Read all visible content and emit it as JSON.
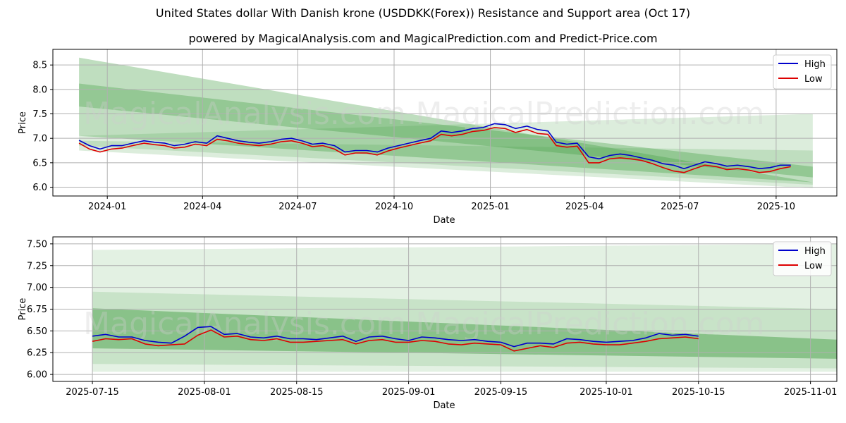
{
  "title": "United States dollar With Danish krone (USDDKK(Forex)) Resistance and Support area (Oct 17)",
  "subtitle": "powered by MagicalAnalysis.com and MagicalPrediction.com and Predict-Price.com",
  "watermarks": [
    "MagicalAnalysis.com",
    "MagicalPrediction.com"
  ],
  "colors": {
    "high": "#0000cc",
    "low": "#dd0000",
    "band": "#3c9a3c",
    "grid": "#b0b0b0"
  },
  "chart_data": [
    {
      "type": "line",
      "xlabel": "Date",
      "ylabel": "Price",
      "ylim": [
        5.82,
        8.82
      ],
      "xlim": [
        "2023-11-10",
        "2025-11-28"
      ],
      "yticks": [
        "6.0",
        "6.5",
        "7.0",
        "7.5",
        "8.0",
        "8.5"
      ],
      "xticks": [
        {
          "date": "2024-01-01",
          "label": "2024-01"
        },
        {
          "date": "2024-04-01",
          "label": "2024-04"
        },
        {
          "date": "2024-07-01",
          "label": "2024-07"
        },
        {
          "date": "2024-10-01",
          "label": "2024-10"
        },
        {
          "date": "2025-01-01",
          "label": "2025-01"
        },
        {
          "date": "2025-04-01",
          "label": "2025-04"
        },
        {
          "date": "2025-07-01",
          "label": "2025-07"
        },
        {
          "date": "2025-10-01",
          "label": "2025-10"
        }
      ],
      "grid": true,
      "legend": "top-right",
      "bands": [
        {
          "x": [
            "2023-12-05",
            "2025-11-05"
          ],
          "upper": [
            8.65,
            6.1
          ],
          "lower": [
            7.05,
            6.1
          ],
          "opacity": 0.33
        },
        {
          "x": [
            "2023-12-05",
            "2025-11-05"
          ],
          "upper": [
            8.12,
            6.42
          ],
          "lower": [
            7.65,
            6.2
          ],
          "opacity": 0.33
        },
        {
          "x": [
            "2023-12-05",
            "2025-11-05"
          ],
          "upper": [
            7.05,
            7.5
          ],
          "lower": [
            6.75,
            5.98
          ],
          "opacity": 0.18
        },
        {
          "x": [
            "2023-12-05",
            "2025-11-05"
          ],
          "upper": [
            6.95,
            6.75
          ],
          "lower": [
            6.85,
            6.05
          ],
          "opacity": 0.18
        }
      ],
      "series": [
        {
          "name": "High",
          "x": [
            "2023-12-05",
            "2023-12-15",
            "2023-12-25",
            "2024-01-05",
            "2024-01-15",
            "2024-01-25",
            "2024-02-05",
            "2024-02-15",
            "2024-02-25",
            "2024-03-05",
            "2024-03-15",
            "2024-03-25",
            "2024-04-05",
            "2024-04-15",
            "2024-04-25",
            "2024-05-05",
            "2024-05-15",
            "2024-05-25",
            "2024-06-05",
            "2024-06-15",
            "2024-06-25",
            "2024-07-05",
            "2024-07-15",
            "2024-07-25",
            "2024-08-05",
            "2024-08-15",
            "2024-08-25",
            "2024-09-05",
            "2024-09-15",
            "2024-09-25",
            "2024-10-05",
            "2024-10-15",
            "2024-10-25",
            "2024-11-05",
            "2024-11-15",
            "2024-11-25",
            "2024-12-05",
            "2024-12-15",
            "2024-12-25",
            "2025-01-05",
            "2025-01-15",
            "2025-01-25",
            "2025-02-05",
            "2025-02-15",
            "2025-02-25",
            "2025-03-05",
            "2025-03-15",
            "2025-03-25",
            "2025-04-05",
            "2025-04-15",
            "2025-04-25",
            "2025-05-05",
            "2025-05-15",
            "2025-05-25",
            "2025-06-05",
            "2025-06-15",
            "2025-06-25",
            "2025-07-05",
            "2025-07-15",
            "2025-07-25",
            "2025-08-05",
            "2025-08-15",
            "2025-08-25",
            "2025-09-05",
            "2025-09-15",
            "2025-09-25",
            "2025-10-05",
            "2025-10-15"
          ],
          "values": [
            6.96,
            6.85,
            6.78,
            6.85,
            6.85,
            6.9,
            6.95,
            6.92,
            6.9,
            6.85,
            6.88,
            6.93,
            6.9,
            7.05,
            7.0,
            6.95,
            6.92,
            6.9,
            6.93,
            6.98,
            7.0,
            6.95,
            6.88,
            6.9,
            6.85,
            6.72,
            6.75,
            6.75,
            6.72,
            6.8,
            6.85,
            6.9,
            6.95,
            7.0,
            7.15,
            7.12,
            7.15,
            7.2,
            7.22,
            7.3,
            7.28,
            7.2,
            7.25,
            7.18,
            7.15,
            6.92,
            6.88,
            6.9,
            6.62,
            6.58,
            6.65,
            6.68,
            6.65,
            6.6,
            6.55,
            6.48,
            6.45,
            6.38,
            6.45,
            6.52,
            6.48,
            6.43,
            6.45,
            6.42,
            6.38,
            6.4,
            6.45,
            6.45
          ]
        },
        {
          "name": "Low",
          "x": [
            "2023-12-05",
            "2023-12-15",
            "2023-12-25",
            "2024-01-05",
            "2024-01-15",
            "2024-01-25",
            "2024-02-05",
            "2024-02-15",
            "2024-02-25",
            "2024-03-05",
            "2024-03-15",
            "2024-03-25",
            "2024-04-05",
            "2024-04-15",
            "2024-04-25",
            "2024-05-05",
            "2024-05-15",
            "2024-05-25",
            "2024-06-05",
            "2024-06-15",
            "2024-06-25",
            "2024-07-05",
            "2024-07-15",
            "2024-07-25",
            "2024-08-05",
            "2024-08-15",
            "2024-08-25",
            "2024-09-05",
            "2024-09-15",
            "2024-09-25",
            "2024-10-05",
            "2024-10-15",
            "2024-10-25",
            "2024-11-05",
            "2024-11-15",
            "2024-11-25",
            "2024-12-05",
            "2024-12-15",
            "2024-12-25",
            "2025-01-05",
            "2025-01-15",
            "2025-01-25",
            "2025-02-05",
            "2025-02-15",
            "2025-02-25",
            "2025-03-05",
            "2025-03-15",
            "2025-03-25",
            "2025-04-05",
            "2025-04-15",
            "2025-04-25",
            "2025-05-05",
            "2025-05-15",
            "2025-05-25",
            "2025-06-05",
            "2025-06-15",
            "2025-06-25",
            "2025-07-05",
            "2025-07-15",
            "2025-07-25",
            "2025-08-05",
            "2025-08-15",
            "2025-08-25",
            "2025-09-05",
            "2025-09-15",
            "2025-09-25",
            "2025-10-05",
            "2025-10-15"
          ],
          "values": [
            6.9,
            6.78,
            6.72,
            6.78,
            6.8,
            6.85,
            6.9,
            6.87,
            6.85,
            6.8,
            6.82,
            6.88,
            6.85,
            6.98,
            6.95,
            6.9,
            6.87,
            6.85,
            6.88,
            6.93,
            6.95,
            6.9,
            6.83,
            6.85,
            6.78,
            6.66,
            6.7,
            6.7,
            6.66,
            6.74,
            6.8,
            6.85,
            6.9,
            6.95,
            7.08,
            7.05,
            7.08,
            7.14,
            7.16,
            7.22,
            7.2,
            7.12,
            7.18,
            7.1,
            7.08,
            6.85,
            6.82,
            6.84,
            6.5,
            6.5,
            6.58,
            6.6,
            6.58,
            6.55,
            6.48,
            6.4,
            6.33,
            6.3,
            6.38,
            6.45,
            6.42,
            6.36,
            6.38,
            6.35,
            6.3,
            6.32,
            6.38,
            6.42
          ]
        }
      ]
    },
    {
      "type": "line",
      "xlabel": "Date",
      "ylabel": "Price",
      "ylim": [
        5.92,
        7.58
      ],
      "xlim": [
        "2025-07-09",
        "2025-11-05"
      ],
      "yticks": [
        "6.00",
        "6.25",
        "6.50",
        "6.75",
        "7.00",
        "7.25",
        "7.50"
      ],
      "xticks": [
        {
          "date": "2025-07-15",
          "label": "2025-07-15"
        },
        {
          "date": "2025-08-01",
          "label": "2025-08-01"
        },
        {
          "date": "2025-08-15",
          "label": "2025-08-15"
        },
        {
          "date": "2025-09-01",
          "label": "2025-09-01"
        },
        {
          "date": "2025-09-15",
          "label": "2025-09-15"
        },
        {
          "date": "2025-10-01",
          "label": "2025-10-01"
        },
        {
          "date": "2025-10-15",
          "label": "2025-10-15"
        },
        {
          "date": "2025-11-01",
          "label": "2025-11-01"
        }
      ],
      "grid": true,
      "legend": "top-right",
      "bands": [
        {
          "x": [
            "2025-07-15",
            "2025-11-05"
          ],
          "upper": [
            7.43,
            7.5
          ],
          "lower": [
            6.03,
            6.03
          ],
          "opacity": 0.14
        },
        {
          "x": [
            "2025-07-15",
            "2025-11-05"
          ],
          "upper": [
            6.95,
            6.75
          ],
          "lower": [
            6.12,
            6.07
          ],
          "opacity": 0.16
        },
        {
          "x": [
            "2025-07-15",
            "2025-11-05"
          ],
          "upper": [
            6.76,
            6.4
          ],
          "lower": [
            6.3,
            6.18
          ],
          "opacity": 0.45
        }
      ],
      "series": [
        {
          "name": "High",
          "x": [
            "2025-07-15",
            "2025-07-17",
            "2025-07-19",
            "2025-07-21",
            "2025-07-23",
            "2025-07-25",
            "2025-07-27",
            "2025-07-29",
            "2025-07-31",
            "2025-08-02",
            "2025-08-04",
            "2025-08-06",
            "2025-08-08",
            "2025-08-10",
            "2025-08-12",
            "2025-08-14",
            "2025-08-16",
            "2025-08-18",
            "2025-08-20",
            "2025-08-22",
            "2025-08-24",
            "2025-08-26",
            "2025-08-28",
            "2025-08-30",
            "2025-09-01",
            "2025-09-03",
            "2025-09-05",
            "2025-09-07",
            "2025-09-09",
            "2025-09-11",
            "2025-09-13",
            "2025-09-15",
            "2025-09-17",
            "2025-09-19",
            "2025-09-21",
            "2025-09-23",
            "2025-09-25",
            "2025-09-27",
            "2025-09-29",
            "2025-10-01",
            "2025-10-03",
            "2025-10-05",
            "2025-10-07",
            "2025-10-09",
            "2025-10-11",
            "2025-10-13",
            "2025-10-15"
          ],
          "values": [
            6.44,
            6.46,
            6.43,
            6.43,
            6.39,
            6.37,
            6.36,
            6.44,
            6.54,
            6.55,
            6.46,
            6.47,
            6.43,
            6.42,
            6.44,
            6.41,
            6.41,
            6.4,
            6.42,
            6.44,
            6.38,
            6.43,
            6.44,
            6.41,
            6.39,
            6.43,
            6.42,
            6.4,
            6.39,
            6.4,
            6.38,
            6.37,
            6.32,
            6.36,
            6.36,
            6.35,
            6.41,
            6.4,
            6.38,
            6.37,
            6.38,
            6.39,
            6.42,
            6.47,
            6.45,
            6.46,
            6.44
          ]
        },
        {
          "name": "Low",
          "x": [
            "2025-07-15",
            "2025-07-17",
            "2025-07-19",
            "2025-07-21",
            "2025-07-23",
            "2025-07-25",
            "2025-07-27",
            "2025-07-29",
            "2025-07-31",
            "2025-08-02",
            "2025-08-04",
            "2025-08-06",
            "2025-08-08",
            "2025-08-10",
            "2025-08-12",
            "2025-08-14",
            "2025-08-16",
            "2025-08-18",
            "2025-08-20",
            "2025-08-22",
            "2025-08-24",
            "2025-08-26",
            "2025-08-28",
            "2025-08-30",
            "2025-09-01",
            "2025-09-03",
            "2025-09-05",
            "2025-09-07",
            "2025-09-09",
            "2025-09-11",
            "2025-09-13",
            "2025-09-15",
            "2025-09-17",
            "2025-09-19",
            "2025-09-21",
            "2025-09-23",
            "2025-09-25",
            "2025-09-27",
            "2025-09-29",
            "2025-10-01",
            "2025-10-03",
            "2025-10-05",
            "2025-10-07",
            "2025-10-09",
            "2025-10-11",
            "2025-10-13",
            "2025-10-15"
          ],
          "values": [
            6.38,
            6.41,
            6.4,
            6.41,
            6.35,
            6.33,
            6.34,
            6.35,
            6.45,
            6.51,
            6.43,
            6.44,
            6.4,
            6.39,
            6.41,
            6.37,
            6.37,
            6.38,
            6.39,
            6.4,
            6.35,
            6.39,
            6.4,
            6.37,
            6.37,
            6.39,
            6.38,
            6.35,
            6.34,
            6.36,
            6.35,
            6.34,
            6.27,
            6.3,
            6.33,
            6.31,
            6.36,
            6.37,
            6.35,
            6.34,
            6.34,
            6.36,
            6.38,
            6.41,
            6.42,
            6.43,
            6.41
          ]
        }
      ]
    }
  ]
}
